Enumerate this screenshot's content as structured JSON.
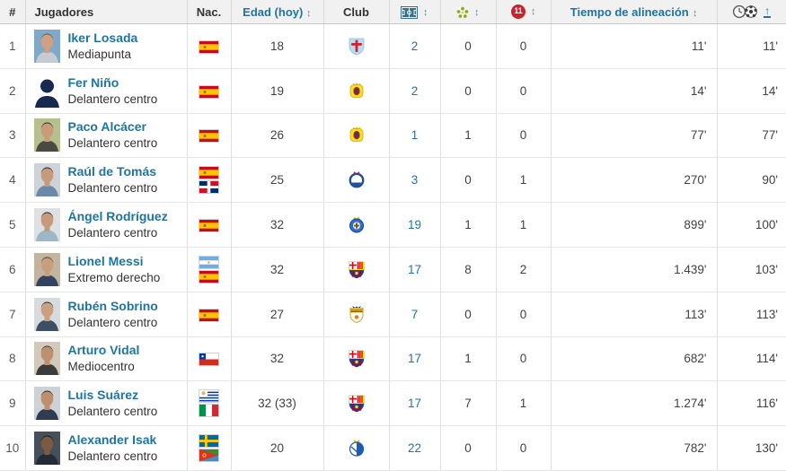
{
  "header": {
    "rank": "#",
    "players": "Jugadores",
    "nationality": "Nac.",
    "age": "Edad (hoy)",
    "club": "Club",
    "minutes": "Tiempo de alineación",
    "sort_arrow": "↕",
    "sort_ascending_arrow": "↑",
    "penalty_badge": "11",
    "icons": {
      "appearances": "football-pitch-icon",
      "assists": "assist-ball-icon",
      "penalties": "penalty-11-icon",
      "minutes_per_goal": "clock-and-ball-icon"
    }
  },
  "colors": {
    "link_blue": "#1d75a3",
    "header_bg": "#f1f1f1",
    "penalty_red": "#c8232c",
    "assist_green": "#93a61c",
    "pitch_blue": "#366f90"
  },
  "rows": [
    {
      "rank": "1",
      "name": "Iker Losada",
      "position": "Mediapunta",
      "flags": [
        "spain"
      ],
      "age": "18",
      "club": "celta-vigo",
      "appearances": "2",
      "assists": "0",
      "penalties": "0",
      "minutes": "11'",
      "minutes_per_goal": "11'",
      "photo": {
        "type": "portrait",
        "bg": "#7fa8c9",
        "skin": "#cfa184",
        "hair": "#6b5335",
        "shirt": "#c6cdd2"
      }
    },
    {
      "rank": "2",
      "name": "Fer Niño",
      "position": "Delantero centro",
      "flags": [
        "spain"
      ],
      "age": "19",
      "club": "villarreal",
      "appearances": "2",
      "assists": "0",
      "penalties": "0",
      "minutes": "14'",
      "minutes_per_goal": "14'",
      "photo": {
        "type": "silhouette",
        "bg": "#ffffff",
        "skin": "#16294e",
        "hair": "#16294e",
        "shirt": "#16294e"
      }
    },
    {
      "rank": "3",
      "name": "Paco Alcácer",
      "position": "Delantero centro",
      "flags": [
        "spain"
      ],
      "age": "26",
      "club": "villarreal",
      "appearances": "1",
      "assists": "1",
      "penalties": "0",
      "minutes": "77'",
      "minutes_per_goal": "77'",
      "photo": {
        "type": "portrait",
        "bg": "#b4c18e",
        "skin": "#c99b78",
        "hair": "#2e2318",
        "shirt": "#4a4a42"
      }
    },
    {
      "rank": "4",
      "name": "Raúl de Tomás",
      "position": "Delantero centro",
      "flags": [
        "spain",
        "dominican-republic"
      ],
      "age": "25",
      "club": "espanyol",
      "appearances": "3",
      "assists": "0",
      "penalties": "1",
      "minutes": "270'",
      "minutes_per_goal": "90'",
      "photo": {
        "type": "portrait",
        "bg": "#cdd3d8",
        "skin": "#c79b79",
        "hair": "#241a12",
        "shirt": "#6c88a8"
      }
    },
    {
      "rank": "5",
      "name": "Ángel Rodríguez",
      "position": "Delantero centro",
      "flags": [
        "spain"
      ],
      "age": "32",
      "club": "getafe",
      "appearances": "19",
      "assists": "1",
      "penalties": "1",
      "minutes": "899'",
      "minutes_per_goal": "100'",
      "photo": {
        "type": "portrait",
        "bg": "#dde1e4",
        "skin": "#c79b79",
        "hair": "#1d1510",
        "shirt": "#9db7c6"
      }
    },
    {
      "rank": "6",
      "name": "Lionel Messi",
      "position": "Extremo derecho",
      "flags": [
        "argentina",
        "spain"
      ],
      "age": "32",
      "club": "barcelona",
      "appearances": "17",
      "assists": "8",
      "penalties": "2",
      "minutes": "1.439'",
      "minutes_per_goal": "103'",
      "photo": {
        "type": "portrait",
        "bg": "#c3b4a2",
        "skin": "#c99e7c",
        "hair": "#4a3826",
        "shirt": "#31445f"
      }
    },
    {
      "rank": "7",
      "name": "Rubén Sobrino",
      "position": "Delantero centro",
      "flags": [
        "spain"
      ],
      "age": "27",
      "club": "valencia",
      "appearances": "7",
      "assists": "0",
      "penalties": "0",
      "minutes": "113'",
      "minutes_per_goal": "113'",
      "photo": {
        "type": "portrait",
        "bg": "#d7dbde",
        "skin": "#cba081",
        "hair": "#2a2019",
        "shirt": "#3c4f63"
      }
    },
    {
      "rank": "8",
      "name": "Arturo Vidal",
      "position": "Mediocentro",
      "flags": [
        "chile"
      ],
      "age": "32",
      "club": "barcelona",
      "appearances": "17",
      "assists": "1",
      "penalties": "0",
      "minutes": "682'",
      "minutes_per_goal": "114'",
      "photo": {
        "type": "portrait",
        "bg": "#d3c8bc",
        "skin": "#bd9070",
        "hair": "#3a3231",
        "shirt": "#3b3b3b"
      }
    },
    {
      "rank": "9",
      "name": "Luis Suárez",
      "position": "Delantero centro",
      "flags": [
        "uruguay",
        "italy"
      ],
      "age": "32 (33)",
      "club": "barcelona",
      "appearances": "17",
      "assists": "7",
      "penalties": "1",
      "minutes": "1.274'",
      "minutes_per_goal": "116'",
      "photo": {
        "type": "portrait",
        "bg": "#cdd2d7",
        "skin": "#bd8f6d",
        "hair": "#261c14",
        "shirt": "#2d3c50"
      }
    },
    {
      "rank": "10",
      "name": "Alexander Isak",
      "position": "Delantero centro",
      "flags": [
        "sweden",
        "eritrea"
      ],
      "age": "20",
      "club": "real-sociedad",
      "appearances": "22",
      "assists": "0",
      "penalties": "0",
      "minutes": "782'",
      "minutes_per_goal": "130'",
      "photo": {
        "type": "portrait",
        "bg": "#46505a",
        "skin": "#7a5a42",
        "hair": "#14100c",
        "shirt": "#222c36"
      }
    }
  ]
}
